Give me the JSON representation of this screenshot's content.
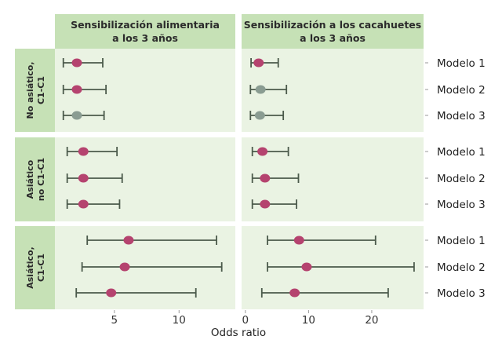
{
  "chart_data": {
    "type": "forest",
    "xlabel": "Odds ratio",
    "colors": {
      "significant": "#b5436f",
      "non_significant": "#8a9c92",
      "whisker": "#4b5a4b",
      "panel_bg": "#eaf3e3",
      "strip_bg": "#c6e1b6"
    },
    "columns": [
      {
        "title_line1": "Sensibilización alimentaria",
        "title_line2": "a los 3 años",
        "xlim": [
          0.4,
          14.35
        ],
        "ticks": [
          5,
          10
        ],
        "tick_labels": [
          "5",
          "10"
        ]
      },
      {
        "title_line1": "Sensibilización a los cacahuetes",
        "title_line2": "a los 3 años",
        "xlim": [
          -0.6,
          28.2
        ],
        "ticks": [
          0,
          10,
          20
        ],
        "tick_labels": [
          "0",
          "10",
          "20"
        ]
      }
    ],
    "rows": [
      {
        "label_line1": "No asiático,",
        "label_line2": "C1-C1"
      },
      {
        "label_line1": "Asiático",
        "label_line2": "no C1-C1"
      },
      {
        "label_line1": "Asiático,",
        "label_line2": "C1-C1"
      }
    ],
    "models": [
      "Modelo 1",
      "Modelo 2",
      "Modelo 3"
    ],
    "estimates": [
      [
        [
          {
            "or": 2.1,
            "lo": 1.05,
            "hi": 4.1,
            "significant": true
          },
          {
            "or": 2.1,
            "lo": 1.05,
            "hi": 4.35,
            "significant": true
          },
          {
            "or": 2.1,
            "lo": 1.05,
            "hi": 4.2,
            "significant": false
          }
        ],
        [
          {
            "or": 2.1,
            "lo": 0.9,
            "hi": 5.2,
            "significant": true
          },
          {
            "or": 2.4,
            "lo": 0.8,
            "hi": 6.5,
            "significant": false
          },
          {
            "or": 2.3,
            "lo": 0.8,
            "hi": 6.0,
            "significant": false
          }
        ]
      ],
      [
        [
          {
            "or": 2.6,
            "lo": 1.35,
            "hi": 5.2,
            "significant": true
          },
          {
            "or": 2.6,
            "lo": 1.35,
            "hi": 5.6,
            "significant": true
          },
          {
            "or": 2.6,
            "lo": 1.35,
            "hi": 5.4,
            "significant": true
          }
        ],
        [
          {
            "or": 2.7,
            "lo": 1.1,
            "hi": 6.8,
            "significant": true
          },
          {
            "or": 3.1,
            "lo": 1.1,
            "hi": 8.4,
            "significant": true
          },
          {
            "or": 3.1,
            "lo": 1.1,
            "hi": 8.1,
            "significant": true
          }
        ]
      ],
      [
        [
          {
            "or": 6.1,
            "lo": 2.9,
            "hi": 12.9,
            "significant": true
          },
          {
            "or": 5.8,
            "lo": 2.5,
            "hi": 13.3,
            "significant": true
          },
          {
            "or": 4.75,
            "lo": 2.05,
            "hi": 11.3,
            "significant": true
          }
        ],
        [
          {
            "or": 8.5,
            "lo": 3.5,
            "hi": 20.6,
            "significant": true
          },
          {
            "or": 9.7,
            "lo": 3.5,
            "hi": 26.7,
            "significant": true
          },
          {
            "or": 7.8,
            "lo": 2.6,
            "hi": 22.6,
            "significant": true
          }
        ]
      ]
    ]
  }
}
